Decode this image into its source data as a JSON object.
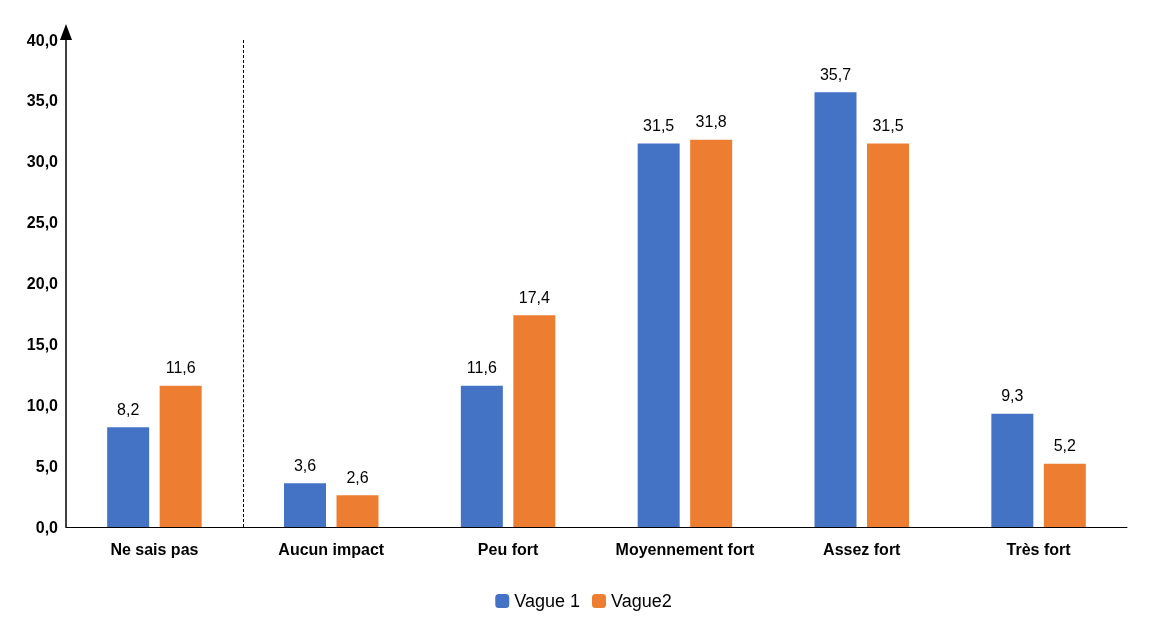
{
  "chart_data": {
    "type": "bar",
    "categories": [
      "Ne sais pas",
      "Aucun impact",
      "Peu fort",
      "Moyennement fort",
      "Assez fort",
      "Très fort"
    ],
    "series": [
      {
        "name": "Vague 1",
        "color": "#4472c4",
        "values": [
          8.2,
          3.6,
          11.6,
          31.5,
          35.7,
          9.3
        ],
        "value_labels": [
          "8,2",
          "3,6",
          "11,6",
          "31,5",
          "35,7",
          "9,3"
        ]
      },
      {
        "name": "Vague2",
        "color": "#ed7d31",
        "values": [
          11.6,
          2.6,
          17.4,
          31.8,
          31.5,
          5.2
        ],
        "value_labels": [
          "11,6",
          "2,6",
          "17,4",
          "31,8",
          "31,5",
          "5,2"
        ]
      }
    ],
    "ylim": [
      0,
      40
    ],
    "yticks": [
      {
        "value": 0,
        "label": "0,0"
      },
      {
        "value": 5,
        "label": "5,0"
      },
      {
        "value": 10,
        "label": "10,0"
      },
      {
        "value": 15,
        "label": "15,0"
      },
      {
        "value": 20,
        "label": "20,0"
      },
      {
        "value": 25,
        "label": "25,0"
      },
      {
        "value": 30,
        "label": "30,0"
      },
      {
        "value": 35,
        "label": "35,0"
      },
      {
        "value": 40,
        "label": "40,0"
      }
    ],
    "grid": false,
    "legend": "bottom"
  }
}
